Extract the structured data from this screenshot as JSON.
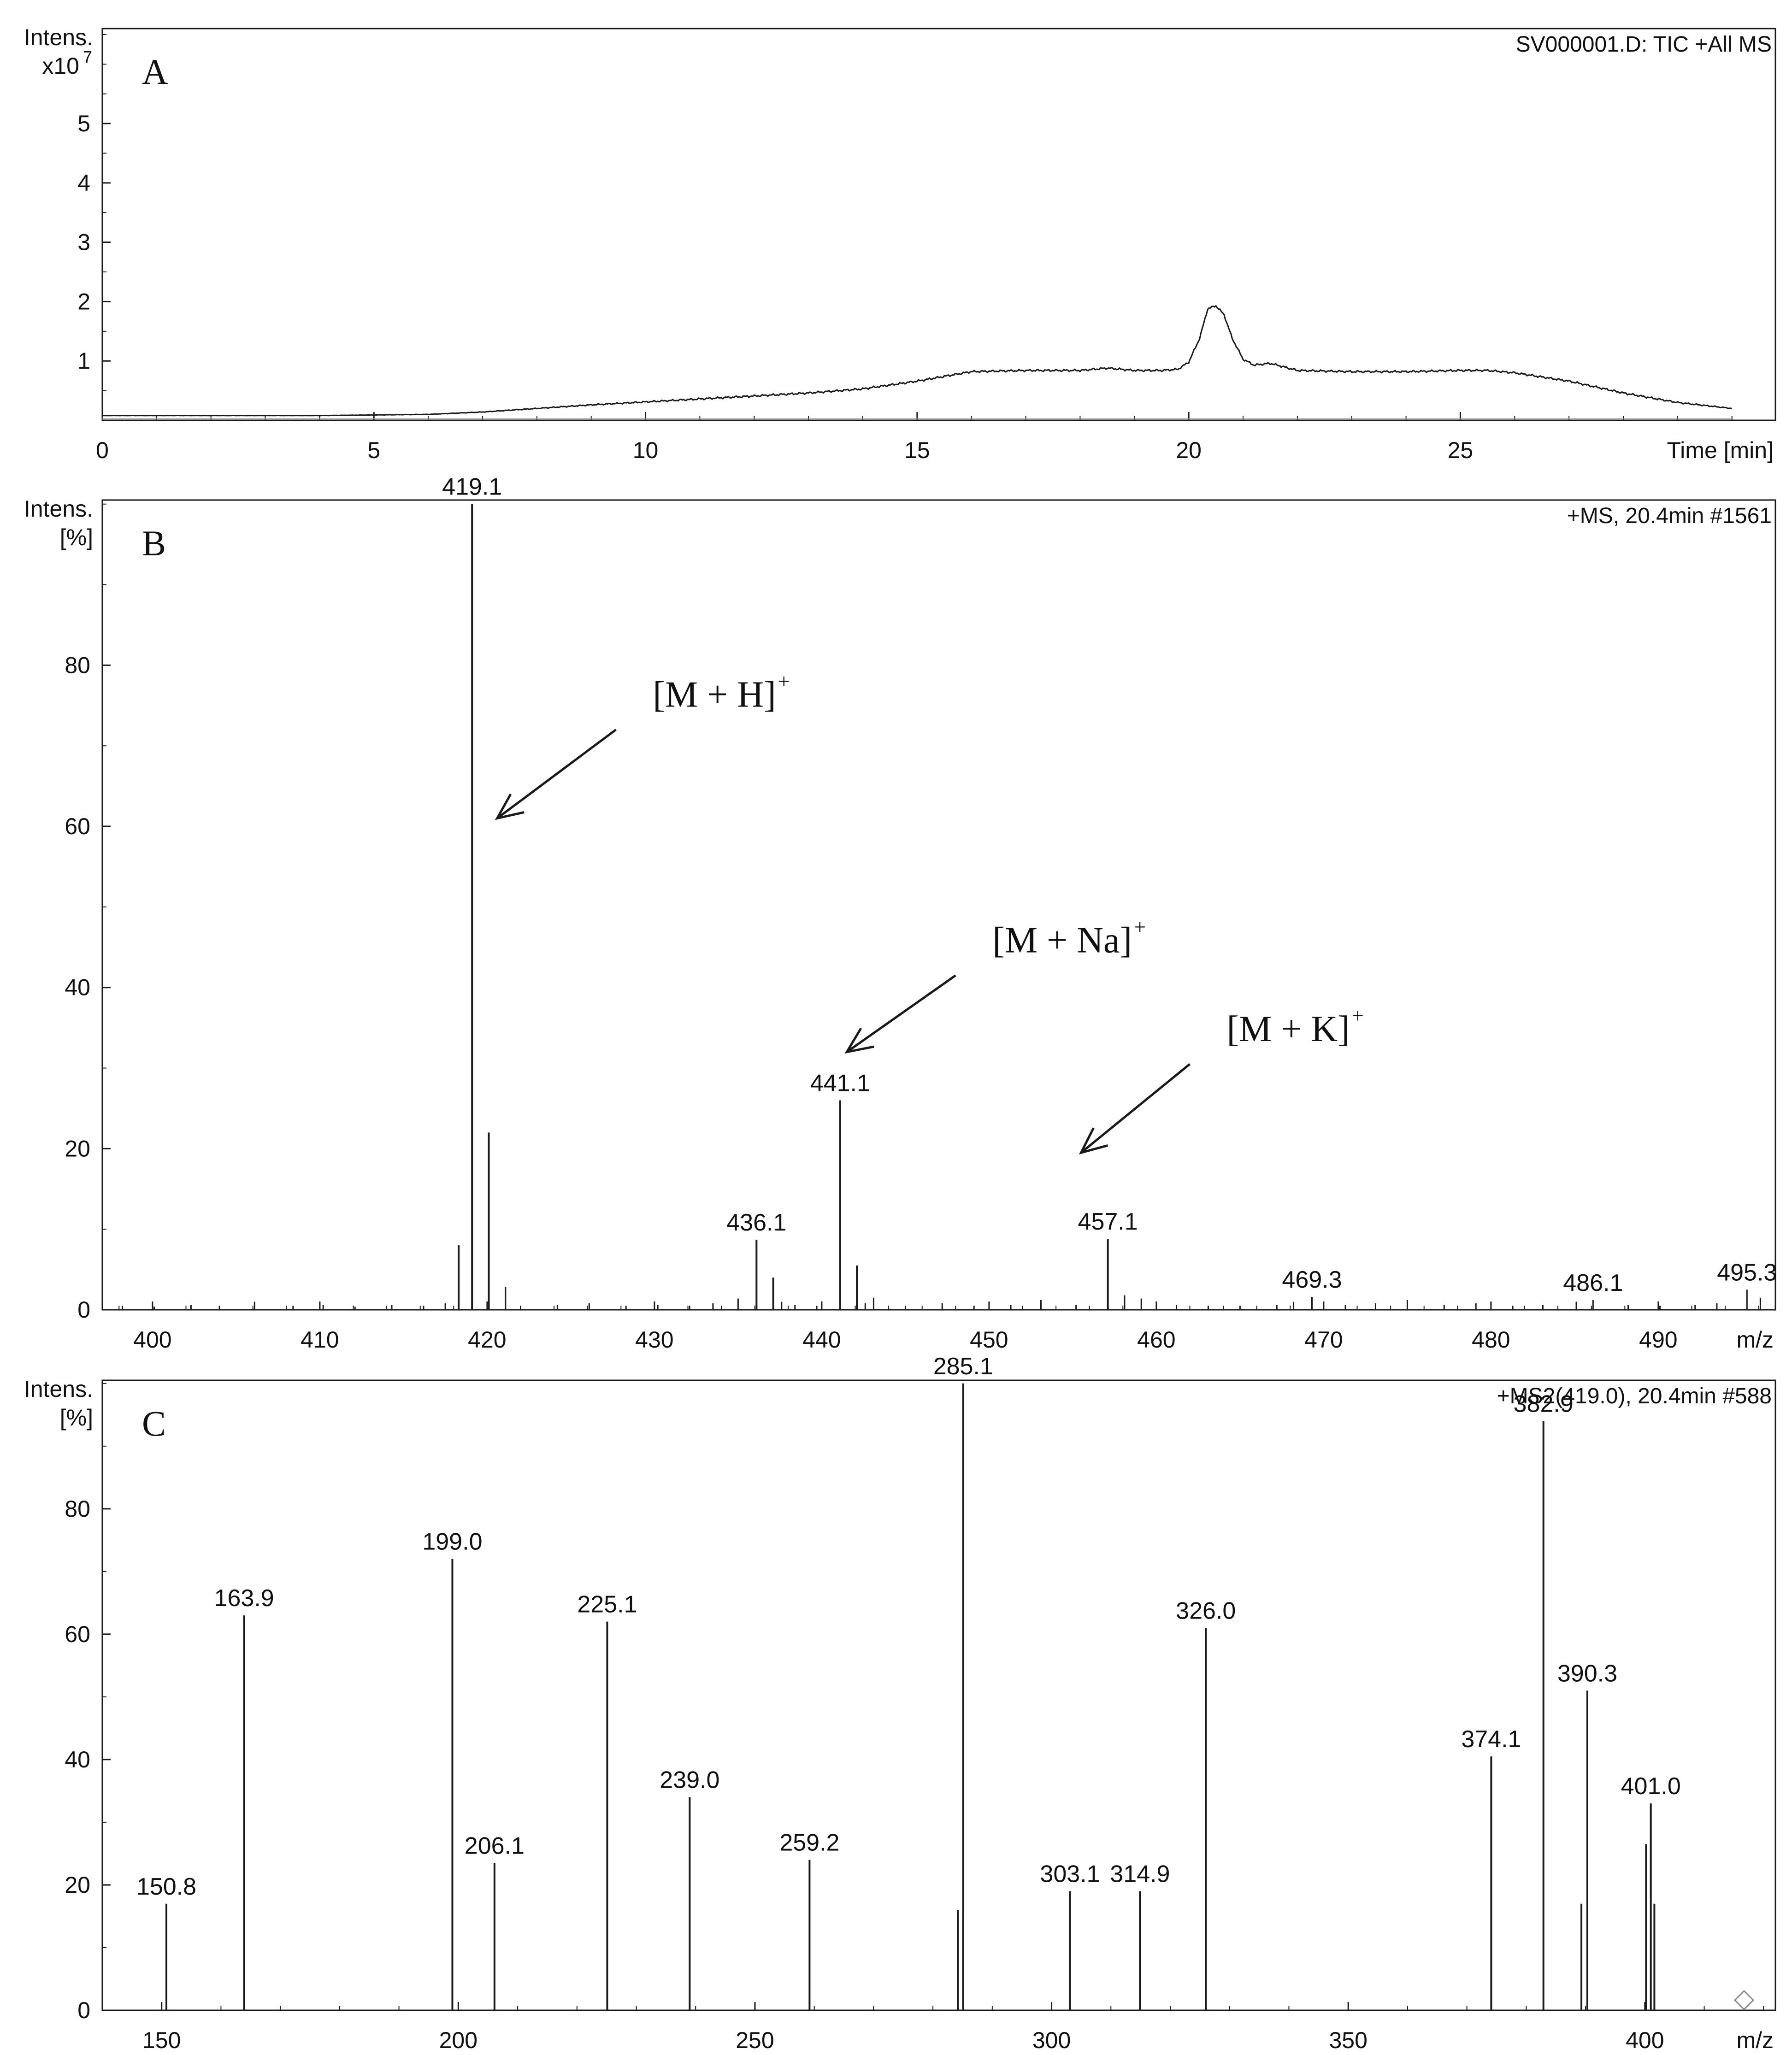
{
  "colors": {
    "stroke": "#1a1a1a",
    "background": "#ffffff",
    "text": "#111111"
  },
  "chart_data": [
    {
      "type": "line",
      "panel_label": "A",
      "header": "SV000001.D: TIC +All MS",
      "ylabel_lines": [
        "Intens.",
        "x10"
      ],
      "ylabel_exponent": "7",
      "xlabel": "Time [min]",
      "xlim": [
        0,
        30.8
      ],
      "ylim": [
        0,
        6.6
      ],
      "y_offset": 0.08,
      "xticks": [
        0,
        5,
        10,
        15,
        20,
        25
      ],
      "yticks": [
        1,
        2,
        3,
        4,
        5
      ],
      "x": [
        0,
        2,
        4,
        6,
        7,
        8,
        9,
        10,
        11,
        12,
        13,
        14,
        15,
        15.5,
        16,
        17,
        18,
        18.5,
        19,
        19.5,
        19.8,
        20.0,
        20.2,
        20.35,
        20.5,
        20.65,
        20.8,
        21.0,
        21.2,
        21.5,
        22,
        23,
        24,
        25,
        25.5,
        26,
        27,
        28,
        29,
        30
      ],
      "y": [
        0.0,
        0.0,
        0.0,
        0.02,
        0.06,
        0.12,
        0.18,
        0.23,
        0.28,
        0.33,
        0.38,
        0.45,
        0.58,
        0.66,
        0.74,
        0.76,
        0.76,
        0.8,
        0.76,
        0.76,
        0.78,
        0.9,
        1.3,
        1.8,
        1.85,
        1.7,
        1.3,
        0.95,
        0.85,
        0.88,
        0.76,
        0.74,
        0.74,
        0.76,
        0.76,
        0.72,
        0.58,
        0.38,
        0.22,
        0.12
      ]
    },
    {
      "type": "bar",
      "panel_label": "B",
      "header": "+MS, 20.4min #1561",
      "ylabel_lines": [
        "Intens.",
        "[%]"
      ],
      "xlabel": "m/z",
      "xlim": [
        397,
        497
      ],
      "ylim": [
        0,
        100.5
      ],
      "xticks": [
        400,
        410,
        420,
        430,
        440,
        450,
        460,
        470,
        480,
        490
      ],
      "yticks": [
        0,
        20,
        40,
        60,
        80
      ],
      "peaks": [
        {
          "x": 398.2,
          "y": 0.5
        },
        {
          "x": 400.1,
          "y": 0.4
        },
        {
          "x": 402.3,
          "y": 0.6
        },
        {
          "x": 404.0,
          "y": 0.5
        },
        {
          "x": 406.1,
          "y": 1.0
        },
        {
          "x": 408.4,
          "y": 0.5
        },
        {
          "x": 410.2,
          "y": 0.6
        },
        {
          "x": 412.1,
          "y": 0.4
        },
        {
          "x": 414.3,
          "y": 0.6
        },
        {
          "x": 416.2,
          "y": 0.5
        },
        {
          "x": 417.5,
          "y": 0.8
        },
        {
          "x": 418.3,
          "y": 8.0
        },
        {
          "x": 419.1,
          "y": 100.0,
          "label": "419.1"
        },
        {
          "x": 420.1,
          "y": 22.0
        },
        {
          "x": 421.1,
          "y": 2.8
        },
        {
          "x": 422.0,
          "y": 0.5
        },
        {
          "x": 424.2,
          "y": 0.6
        },
        {
          "x": 426.1,
          "y": 0.8
        },
        {
          "x": 428.3,
          "y": 0.5
        },
        {
          "x": 430.2,
          "y": 0.6
        },
        {
          "x": 432.1,
          "y": 0.5
        },
        {
          "x": 433.5,
          "y": 0.8
        },
        {
          "x": 435.0,
          "y": 1.4
        },
        {
          "x": 436.1,
          "y": 8.7,
          "label": "436.1"
        },
        {
          "x": 437.1,
          "y": 4.0
        },
        {
          "x": 437.6,
          "y": 1.0
        },
        {
          "x": 438.4,
          "y": 0.6
        },
        {
          "x": 439.7,
          "y": 0.5
        },
        {
          "x": 441.1,
          "y": 26.0,
          "label": "441.1"
        },
        {
          "x": 442.1,
          "y": 5.5
        },
        {
          "x": 442.6,
          "y": 0.8
        },
        {
          "x": 443.1,
          "y": 1.5
        },
        {
          "x": 445.0,
          "y": 0.5
        },
        {
          "x": 447.2,
          "y": 0.8
        },
        {
          "x": 449.1,
          "y": 0.5
        },
        {
          "x": 451.3,
          "y": 0.6
        },
        {
          "x": 453.1,
          "y": 1.2
        },
        {
          "x": 455.2,
          "y": 0.6
        },
        {
          "x": 457.1,
          "y": 8.8,
          "label": "457.1"
        },
        {
          "x": 458.1,
          "y": 1.8
        },
        {
          "x": 459.1,
          "y": 1.4
        },
        {
          "x": 461.2,
          "y": 0.6
        },
        {
          "x": 463.1,
          "y": 0.5
        },
        {
          "x": 465.0,
          "y": 0.5
        },
        {
          "x": 467.2,
          "y": 0.6
        },
        {
          "x": 468.2,
          "y": 1.0
        },
        {
          "x": 469.3,
          "y": 1.6,
          "label": "469.3"
        },
        {
          "x": 471.3,
          "y": 0.6
        },
        {
          "x": 473.1,
          "y": 0.8
        },
        {
          "x": 475.0,
          "y": 1.2
        },
        {
          "x": 477.2,
          "y": 0.6
        },
        {
          "x": 479.1,
          "y": 0.8
        },
        {
          "x": 481.3,
          "y": 0.5
        },
        {
          "x": 483.1,
          "y": 0.6
        },
        {
          "x": 485.1,
          "y": 1.0
        },
        {
          "x": 486.1,
          "y": 1.2,
          "label": "486.1"
        },
        {
          "x": 488.2,
          "y": 0.6
        },
        {
          "x": 490.1,
          "y": 0.5
        },
        {
          "x": 492.2,
          "y": 0.6
        },
        {
          "x": 493.5,
          "y": 0.8
        },
        {
          "x": 495.3,
          "y": 2.5,
          "label": "495.3"
        },
        {
          "x": 496.1,
          "y": 1.5
        }
      ],
      "annotations": [
        {
          "text": "[M + H]",
          "sup": "+",
          "tail_x": 427.7,
          "tail_y": 72.0,
          "head_x": 420.6,
          "head_y": 61.0
        },
        {
          "text": "[M + Na]",
          "sup": "+",
          "tail_x": 448.0,
          "tail_y": 41.5,
          "head_x": 441.5,
          "head_y": 32.0
        },
        {
          "text": "[M + K]",
          "sup": "+",
          "tail_x": 462.0,
          "tail_y": 30.5,
          "head_x": 455.5,
          "head_y": 19.5
        }
      ]
    },
    {
      "type": "bar",
      "panel_label": "C",
      "header": "+MS2(419.0), 20.4min #588",
      "ylabel_lines": [
        "Intens.",
        "[%]"
      ],
      "xlabel": "m/z",
      "xlim": [
        140,
        422
      ],
      "ylim": [
        0,
        100.5
      ],
      "xticks": [
        150,
        200,
        250,
        300,
        350,
        400
      ],
      "yticks": [
        0,
        20,
        40,
        60,
        80
      ],
      "peaks": [
        {
          "x": 150.8,
          "y": 17.0,
          "label": "150.8"
        },
        {
          "x": 163.9,
          "y": 63.0,
          "label": "163.9"
        },
        {
          "x": 199.0,
          "y": 72.0,
          "label": "199.0"
        },
        {
          "x": 206.1,
          "y": 23.5,
          "label": "206.1"
        },
        {
          "x": 225.1,
          "y": 62.0,
          "label": "225.1"
        },
        {
          "x": 239.0,
          "y": 34.0,
          "label": "239.0"
        },
        {
          "x": 259.2,
          "y": 24.0,
          "label": "259.2"
        },
        {
          "x": 284.2,
          "y": 16.0
        },
        {
          "x": 285.1,
          "y": 100.0,
          "label": "285.1"
        },
        {
          "x": 303.1,
          "y": 19.0,
          "label": "303.1"
        },
        {
          "x": 314.9,
          "y": 19.0,
          "label": "314.9"
        },
        {
          "x": 326.0,
          "y": 61.0,
          "label": "326.0"
        },
        {
          "x": 374.1,
          "y": 40.5,
          "label": "374.1"
        },
        {
          "x": 382.9,
          "y": 94.0,
          "label": "382.9"
        },
        {
          "x": 389.3,
          "y": 17.0
        },
        {
          "x": 390.3,
          "y": 51.0,
          "label": "390.3"
        },
        {
          "x": 400.2,
          "y": 26.5
        },
        {
          "x": 401.0,
          "y": 33.0,
          "label": "401.0"
        },
        {
          "x": 401.6,
          "y": 17.0
        }
      ]
    }
  ]
}
